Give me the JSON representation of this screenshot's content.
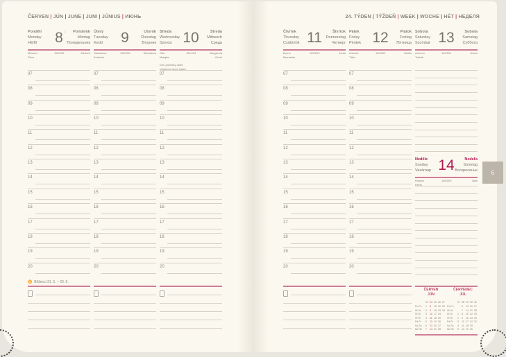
{
  "left_header": [
    "ČERVEN",
    "JÚN",
    "JUNE",
    "JUNI",
    "JÚNIUS",
    "ИЮНЬ"
  ],
  "right_header": [
    "24. TÝDEN",
    "TÝŽDEŇ",
    "WEEK",
    "WOCHE",
    "HÉT",
    "НЕДЕЛЯ"
  ],
  "hours": [
    "07",
    "08",
    "09",
    "10",
    "11",
    "12",
    "13",
    "14",
    "15",
    "16",
    "17",
    "18",
    "19",
    "20"
  ],
  "days": [
    {
      "cz": "Pondělí",
      "en": "Monday",
      "hu": "Hétfő",
      "num": "8",
      "icon": "moon-icon",
      "sk": "Pondelok",
      "de": "Montag",
      "ru": "Понедельник",
      "n1": "Medard",
      "doy": "159/206",
      "n2": "Medard",
      "n3": "Pěva",
      "note": ""
    },
    {
      "cz": "Úterý",
      "en": "Tuesday",
      "hu": "Kedd",
      "num": "9",
      "sk": "Utorok",
      "de": "Dienstag",
      "ru": "Вторник",
      "n1": "Stanislava",
      "doy": "160/205",
      "n2": "Stanislava",
      "n3": "Anabela",
      "note": ""
    },
    {
      "cz": "Středa",
      "en": "Wednesday",
      "hu": "Szerda",
      "num": "10",
      "sk": "Streda",
      "de": "Mittwoch",
      "ru": "Среда",
      "n1": "Gita",
      "doy": "161/204",
      "n2": "Margaréta",
      "n3": "Margita",
      "n4": "Gréta",
      "note": "Den památky obětí vyhlazení obce Lidice"
    },
    {
      "cz": "Čtvrtek",
      "en": "Thursday",
      "hu": "Csütörtök",
      "num": "11",
      "sk": "Štvrtok",
      "de": "Donnerstag",
      "ru": "Четверг",
      "n1": "Bruno",
      "doy": "162/203",
      "n2": "Jarka",
      "n3": "Barnabás",
      "note": ""
    },
    {
      "cz": "Pátek",
      "en": "Friday",
      "hu": "Péntek",
      "num": "12",
      "sk": "Piatok",
      "de": "Freitag",
      "ru": "Пятница",
      "n1": "Antonie",
      "doy": "163/202",
      "n2": "Zlatko",
      "n3": "Tália",
      "note": ""
    },
    {
      "cz": "Sobota",
      "en": "Saturday",
      "hu": "Szombat",
      "num": "13",
      "sk": "Sobota",
      "de": "Samstag",
      "ru": "Суббота",
      "n1": "Antonín",
      "doy": "164/201",
      "n2": "Anton",
      "n3": "Tobiáš",
      "note": ""
    },
    {
      "cz": "Neděle",
      "en": "Sunday",
      "hu": "Vasárnap",
      "num": "14",
      "sk": "Nedeľa",
      "de": "Sonntag",
      "ru": "Воскресенье",
      "n1": "Roland",
      "doy": "165/200",
      "n2": "Vasil",
      "n3": "Herta",
      "note": ""
    }
  ],
  "zodiac": {
    "icon": "gemini-icon",
    "symbol": "♊",
    "text": "Blíženci 21. 5. – 20. 6."
  },
  "tab": "6",
  "mini_calendar": [
    {
      "title1": "ČERVEN",
      "title2": "JÚN",
      "weeks": [
        "23",
        "24",
        "25",
        "26",
        "27"
      ],
      "highlight_week": "24",
      "rows": [
        [
          "Po Po",
          "1",
          "8",
          "15",
          "22",
          "29"
        ],
        [
          "Út Ut",
          "2",
          "9",
          "16",
          "23",
          "30"
        ],
        [
          "St St",
          "3",
          "10",
          "17",
          "24",
          ""
        ],
        [
          "Čt Št",
          "4",
          "11",
          "18",
          "25",
          ""
        ],
        [
          "Pá Pi",
          "5",
          "12",
          "19",
          "26",
          ""
        ],
        [
          "So So",
          "6",
          "13",
          "20",
          "27",
          ""
        ],
        [
          "Ne Ne",
          "7",
          "14",
          "21",
          "28",
          ""
        ]
      ]
    },
    {
      "title1": "ČERVENEC",
      "title2": "JÚL",
      "weeks": [
        "27",
        "28",
        "29",
        "30",
        "31"
      ],
      "highlight_week": "",
      "rows": [
        [
          "Po Po",
          "",
          "6",
          "13",
          "20",
          "27"
        ],
        [
          "Út Ut",
          "",
          "7",
          "14",
          "21",
          "28"
        ],
        [
          "St St",
          "1",
          "8",
          "15",
          "22",
          "29"
        ],
        [
          "Čt Št",
          "2",
          "9",
          "16",
          "23",
          "30"
        ],
        [
          "Pá Pi",
          "3",
          "10",
          "17",
          "24",
          "31"
        ],
        [
          "So So",
          "4",
          "11",
          "18",
          "25",
          ""
        ],
        [
          "Ne Ne",
          "5",
          "12",
          "19",
          "26",
          ""
        ]
      ]
    }
  ],
  "colors": {
    "accent": "#c0436a",
    "sunday": "#b0174f",
    "paper": "#fbf8ef"
  }
}
